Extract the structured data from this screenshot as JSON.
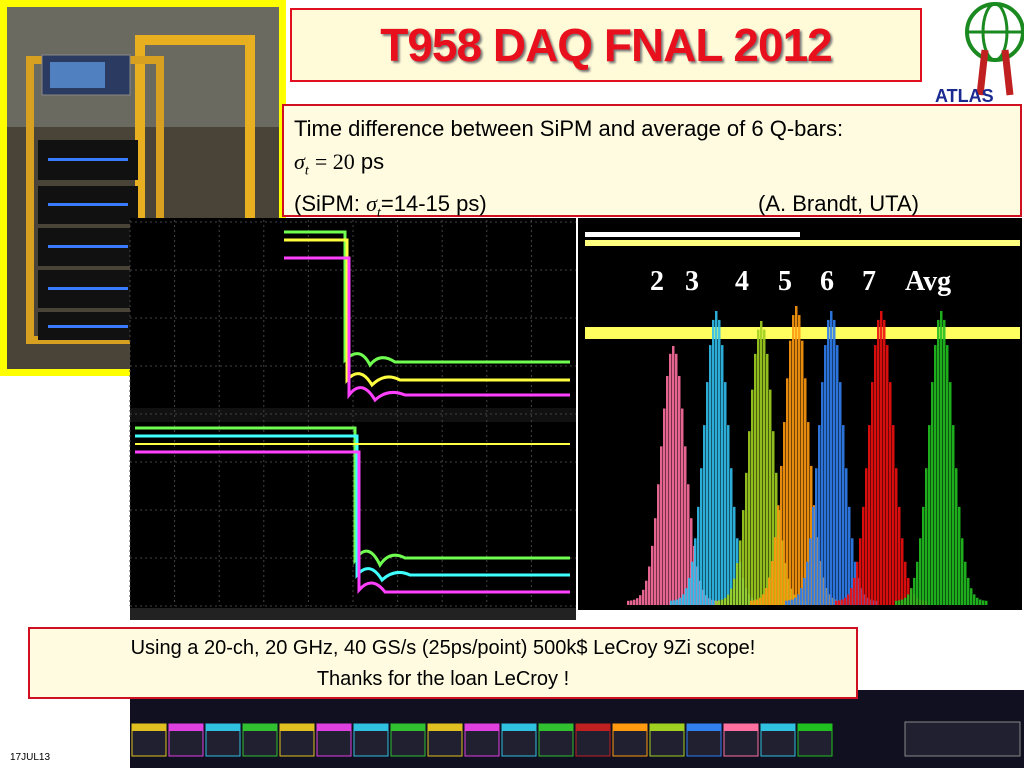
{
  "title": "T958 DAQ  FNAL 2012",
  "logo": "ATLAS",
  "info_box": {
    "line1": "Time difference between SiPM and average of 6 Q-bars:",
    "line2": {
      "symbol": "σ",
      "subscript": "t",
      "equals": "= 20",
      "unit": "ps"
    },
    "line3": {
      "prefix": "(SiPM: ",
      "symbol": "σ",
      "subscript": "t",
      "value": "=14-15 ps)",
      "credit": "(A. Brandt, UTA)"
    }
  },
  "channel_labels": [
    "2",
    "3",
    "4",
    "5",
    "6",
    "7",
    "Avg"
  ],
  "footer_box": {
    "line1": "Using a 20-ch, 20 GHz, 40 GS/s (25ps/point) 500k$ LeCroy 9Zi scope!",
    "line2": "Thanks for the loan  LeCroy !"
  },
  "date": "17JUL13"
}
